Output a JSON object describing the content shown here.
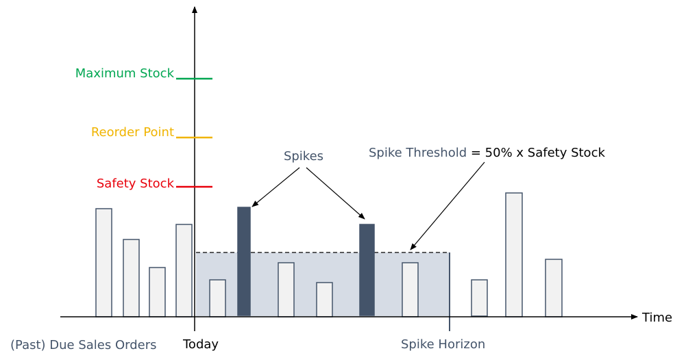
{
  "levels": {
    "maximum_stock": {
      "label": "Maximum Stock",
      "color": "#00a651"
    },
    "reorder_point": {
      "label": "Reorder Point",
      "color": "#f0b400"
    },
    "safety_stock": {
      "label": "Safety Stock",
      "color": "#e8000b"
    }
  },
  "annotations": {
    "spikes": "Spikes",
    "threshold_part1": "Spike Threshold",
    "threshold_part2": " = 50% x Safety Stock"
  },
  "axis": {
    "time_label": "Time",
    "past_label": "(Past) Due Sales Orders",
    "today_label": "Today",
    "spike_horizon_label": "Spike Horizon"
  },
  "colors": {
    "text_dark": "#44546a",
    "bar_fill": "#f2f2f2",
    "bar_stroke": "#44546a",
    "spike_fill": "#44546a",
    "horizon_area": "#d6dce5"
  }
}
